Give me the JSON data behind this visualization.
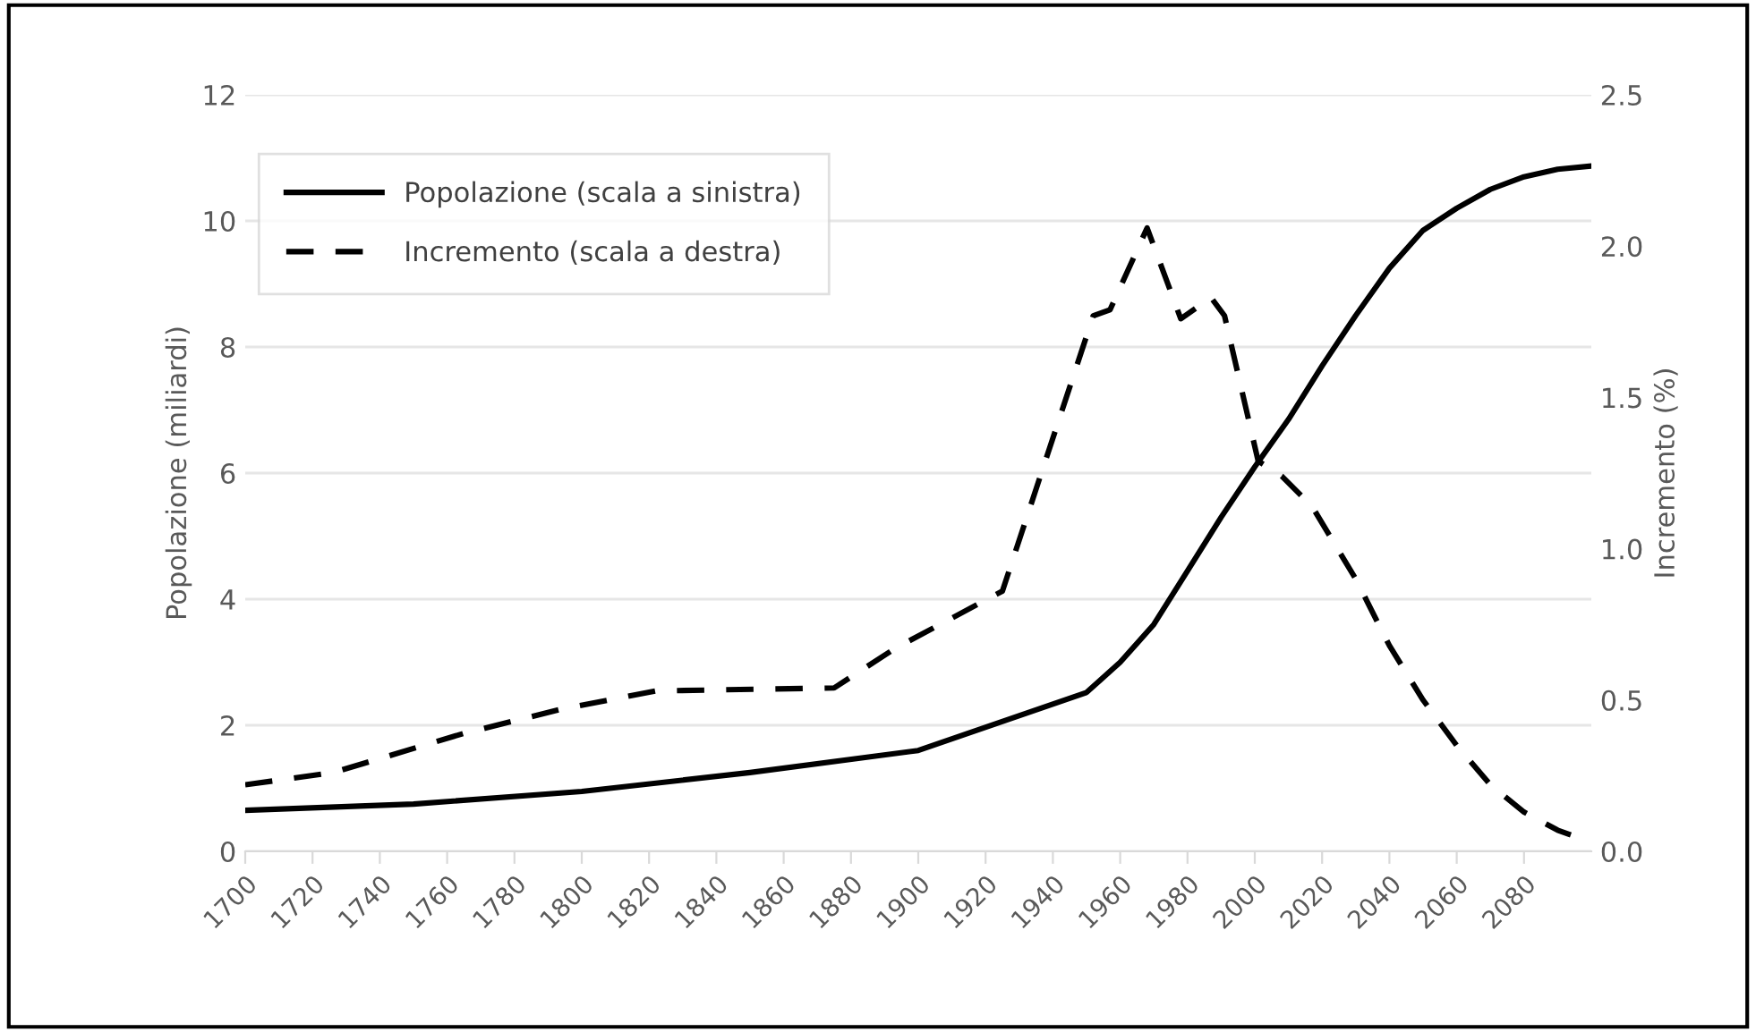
{
  "chart_data": {
    "type": "line",
    "ylabel": "Popolazione (miliardi)",
    "y2label": "Incremento (%)",
    "xlim": [
      1700,
      2100
    ],
    "xticks": [
      1700,
      1720,
      1740,
      1760,
      1780,
      1800,
      1820,
      1840,
      1860,
      1880,
      1900,
      1920,
      1940,
      1960,
      1980,
      2000,
      2020,
      2040,
      2060,
      2080
    ],
    "ylim": [
      0,
      12
    ],
    "yticks": [
      0,
      2,
      4,
      6,
      8,
      10,
      12
    ],
    "y2lim": [
      0,
      2.5
    ],
    "y2ticks": [
      {
        "value": 0,
        "label": "0.0"
      },
      {
        "value": 0.5,
        "label": "0.5"
      },
      {
        "value": 1,
        "label": "1.0"
      },
      {
        "value": 1.5,
        "label": "1.5"
      },
      {
        "value": 2,
        "label": "2.0"
      },
      {
        "value": 2.5,
        "label": "2.5"
      }
    ],
    "grid": "y",
    "legend": "top left",
    "marker": "none",
    "series": [
      {
        "name": "Popolazione (scala a sinistra)",
        "color": "#000000",
        "line_style": "solid",
        "x": [
          1700,
          1750,
          1800,
          1850,
          1900,
          1950,
          1960,
          1970,
          1980,
          1990,
          2000,
          2010,
          2020,
          2030,
          2040,
          2050,
          2060,
          2070,
          2080,
          2090,
          2100
        ],
        "values": [
          0.65,
          0.75,
          0.95,
          1.25,
          1.6,
          2.52,
          3.0,
          3.6,
          4.45,
          5.3,
          6.1,
          6.85,
          7.7,
          8.5,
          9.25,
          9.85,
          10.2,
          10.5,
          10.7,
          10.82,
          10.87
        ]
      },
      {
        "name": "Incremento (scala a destra)",
        "color": "#000000",
        "line_style": "dashed",
        "axis": "y2",
        "x": [
          1700,
          1726,
          1765,
          1794,
          1822,
          1875,
          1893,
          1925,
          1952,
          1957,
          1968,
          1978,
          1987,
          1991,
          2001,
          2008,
          2017,
          2030,
          2040,
          2050,
          2060,
          2070,
          2080,
          2090,
          2100
        ],
        "values": [
          0.22,
          0.26,
          0.39,
          0.47,
          0.53,
          0.54,
          0.67,
          0.86,
          1.77,
          1.79,
          2.06,
          1.76,
          1.83,
          1.77,
          1.29,
          1.24,
          1.14,
          0.9,
          0.68,
          0.5,
          0.35,
          0.22,
          0.13,
          0.07,
          0.03
        ]
      }
    ]
  }
}
